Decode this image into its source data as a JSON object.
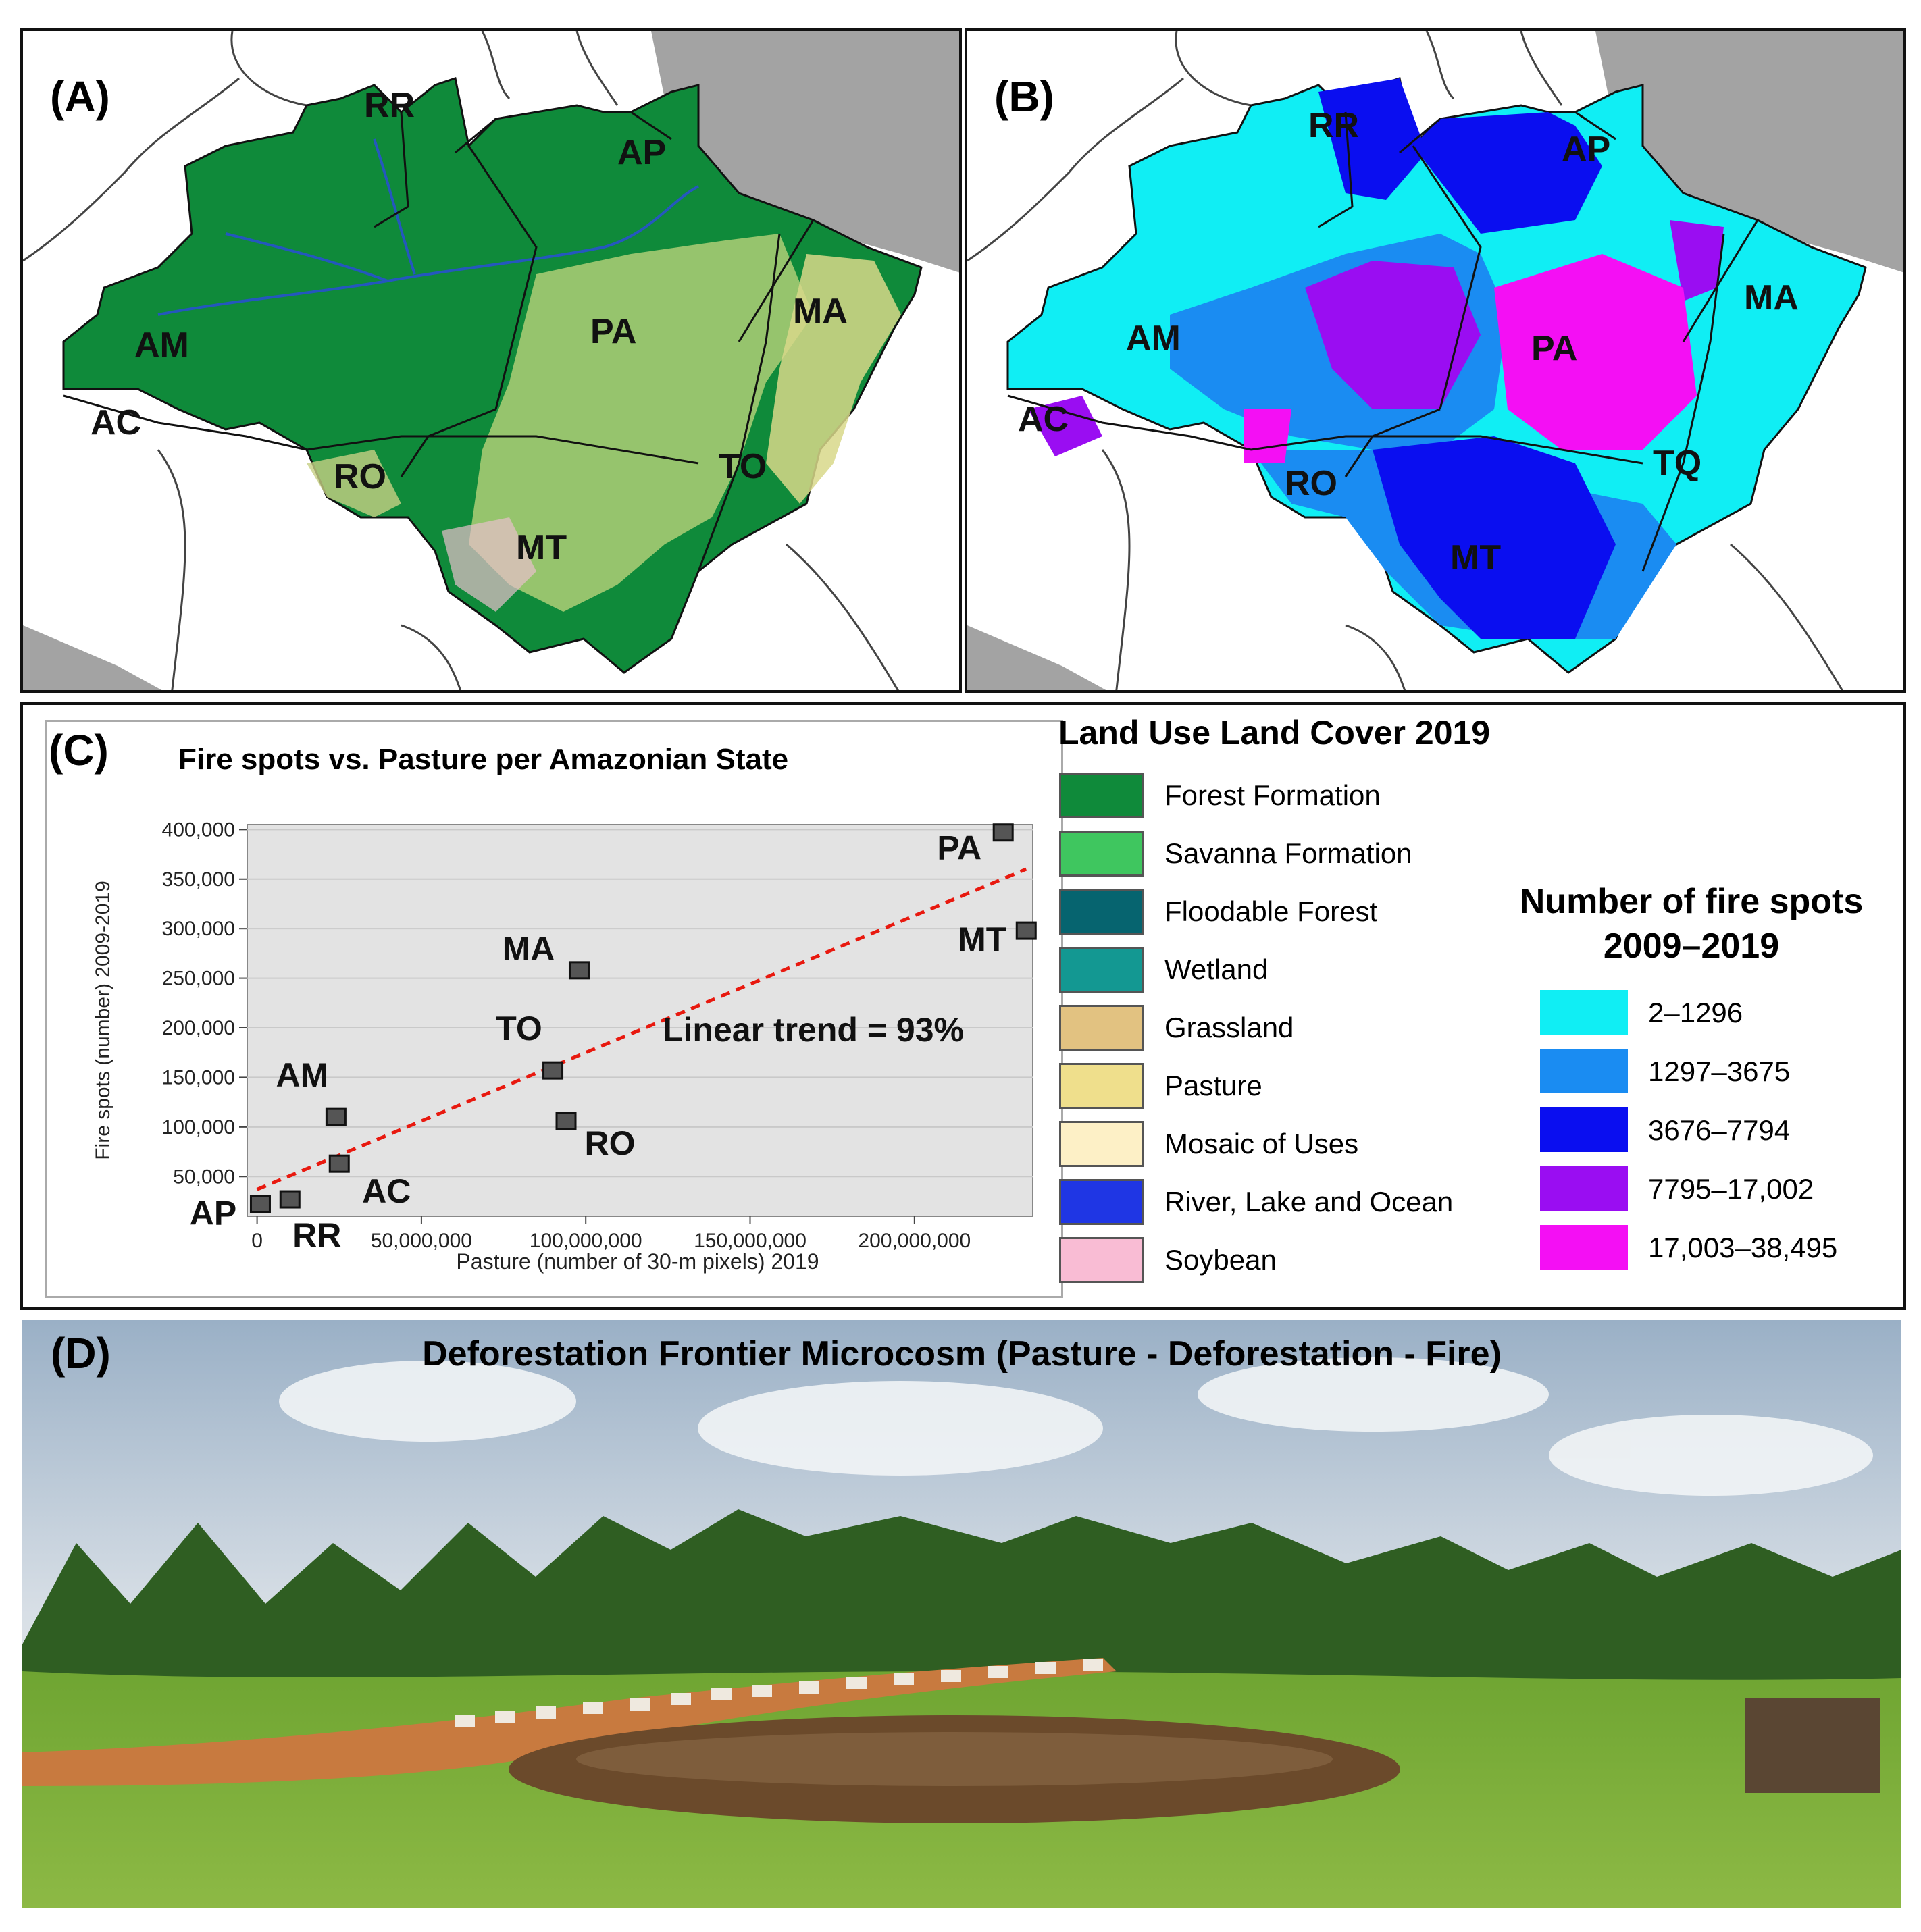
{
  "panel_a": {
    "letter": "(A)",
    "states": [
      "RR",
      "AP",
      "AM",
      "PA",
      "MA",
      "AC",
      "RO",
      "TO",
      "MT"
    ]
  },
  "panel_b": {
    "letter": "(B)",
    "states": [
      "RR",
      "AP",
      "AM",
      "PA",
      "MA",
      "AC",
      "RO",
      "TQ",
      "MT"
    ]
  },
  "panel_c": {
    "letter": "(C)",
    "annotation": "Linear trend = 93%"
  },
  "chart_data": {
    "type": "scatter",
    "title": "Fire spots vs. Pasture per Amazonian State",
    "xlabel": "Pasture (number of 30-m pixels) 2019",
    "ylabel": "Fire spots (number) 2009-2019",
    "xlim": [
      -3000000,
      236000000
    ],
    "ylim": [
      10000,
      405000
    ],
    "x_ticks": [
      0,
      50000000,
      100000000,
      150000000,
      200000000
    ],
    "x_tick_labels": [
      "0",
      "50,000,000",
      "100,000,000",
      "150,000,000",
      "200,000,000"
    ],
    "y_ticks": [
      50000,
      100000,
      150000,
      200000,
      250000,
      300000,
      350000,
      400000
    ],
    "y_tick_labels": [
      "50,000",
      "100,000",
      "150,000",
      "200,000",
      "250,000",
      "300,000",
      "350,000",
      "400,000"
    ],
    "grid": true,
    "points": [
      {
        "label": "AP",
        "x": 1000000,
        "y": 22000
      },
      {
        "label": "RR",
        "x": 10000000,
        "y": 27000
      },
      {
        "label": "AC",
        "x": 25000000,
        "y": 63000
      },
      {
        "label": "AM",
        "x": 24000000,
        "y": 110000
      },
      {
        "label": "TO",
        "x": 90000000,
        "y": 157000
      },
      {
        "label": "RO",
        "x": 94000000,
        "y": 106000
      },
      {
        "label": "MA",
        "x": 98000000,
        "y": 258000
      },
      {
        "label": "PA",
        "x": 227000000,
        "y": 397000
      },
      {
        "label": "MT",
        "x": 234000000,
        "y": 298000
      }
    ],
    "trend_line": {
      "x": [
        0,
        234000000
      ],
      "y": [
        37000,
        360000
      ],
      "color": "#e8190f"
    }
  },
  "land_cover_legend": {
    "title": "Land Use Land Cover 2019",
    "items": [
      {
        "label": "Forest Formation",
        "color": "#0f8a3a"
      },
      {
        "label": "Savanna Formation",
        "color": "#3fc65f"
      },
      {
        "label": "Floodable Forest",
        "color": "#06646f"
      },
      {
        "label": "Wetland",
        "color": "#139892"
      },
      {
        "label": "Grassland",
        "color": "#e2c281"
      },
      {
        "label": "Pasture",
        "color": "#efdf8c"
      },
      {
        "label": "Mosaic of Uses",
        "color": "#fdf0c6"
      },
      {
        "label": "River, Lake and Ocean",
        "color": "#1f36e4"
      },
      {
        "label": "Soybean",
        "color": "#f9bcd4"
      }
    ]
  },
  "fire_legend": {
    "title_line1": "Number of fire spots",
    "title_line2": "2009–2019",
    "items": [
      {
        "label": "2–1296",
        "color": "#10eef4"
      },
      {
        "label": "1297–3675",
        "color": "#1a8cf2"
      },
      {
        "label": "3676–7794",
        "color": "#0a0ef0"
      },
      {
        "label": "7795–17,002",
        "color": "#9a0df2"
      },
      {
        "label": "17,003–38,495",
        "color": "#f40ff4"
      }
    ]
  },
  "panel_d": {
    "letter": "(D)",
    "title": "Deforestation Frontier Microcosm (Pasture - Deforestation - Fire)"
  }
}
